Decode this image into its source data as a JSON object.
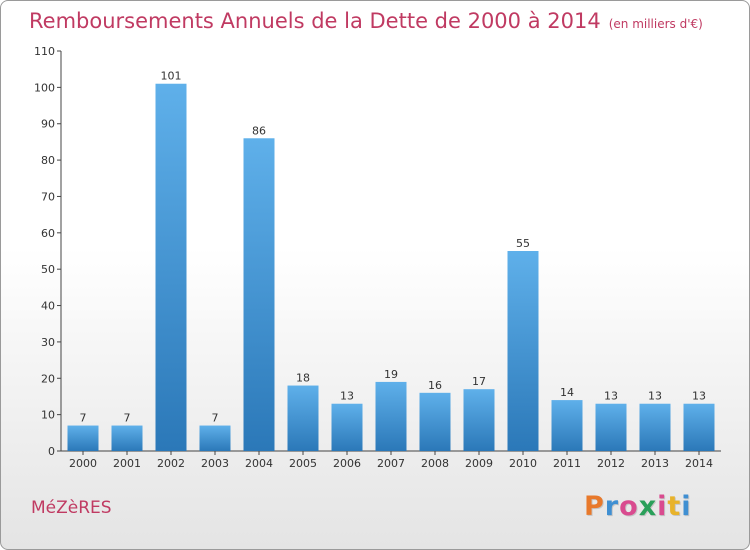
{
  "title": "Remboursements Annuels de la Dette de 2000 à 2014",
  "subtitle": "(en milliers d'€)",
  "town": "MéZèRES",
  "logo": {
    "text": "Proxiti",
    "letter_colors": [
      "#e8792b",
      "#3f8fd2",
      "#d94b8f",
      "#2aa05a",
      "#d94b8f",
      "#e8b32b",
      "#3f8fd2"
    ]
  },
  "colors": {
    "bar_top": "#5fb0ea",
    "bar_bottom": "#2b78b8",
    "title": "#c03a62",
    "axis": "#444444"
  },
  "chart_data": {
    "type": "bar",
    "title": "Remboursements Annuels de la Dette de 2000 à 2014",
    "subtitle": "(en milliers d'€)",
    "categories": [
      "2000",
      "2001",
      "2002",
      "2003",
      "2004",
      "2005",
      "2006",
      "2007",
      "2008",
      "2009",
      "2010",
      "2011",
      "2012",
      "2013",
      "2014"
    ],
    "values": [
      7,
      7,
      101,
      7,
      86,
      18,
      13,
      19,
      16,
      17,
      55,
      14,
      13,
      13,
      13
    ],
    "xlabel": "",
    "ylabel": "",
    "ylim": [
      0,
      110
    ],
    "yticks": [
      0,
      10,
      20,
      30,
      40,
      50,
      60,
      70,
      80,
      90,
      100,
      110
    ],
    "grid": false,
    "data_labels": true
  }
}
